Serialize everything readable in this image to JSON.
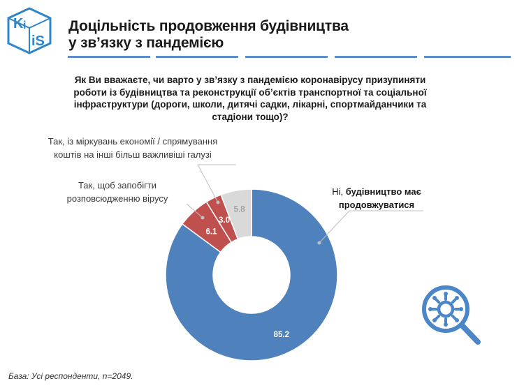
{
  "header": {
    "logo_text": "KiIS",
    "title_line1": "Доцільність продовження будівництва",
    "title_line2": "у зв’язку з пандемією"
  },
  "question": {
    "line1": "Як Ви вважаєте, чи варто у зв’язку з пандемією коронавірусу призупиняти",
    "line2": "роботи із будівництва та реконструкції об’єктів транспортної та соціальної",
    "line3": "інфраструктури (дороги, школи, дитячі садки, лікарні, спортмайданчики та",
    "line4": "стадіони тощо)?"
  },
  "labels": {
    "economy_line1": "Так, із міркувань економії / спрямування",
    "economy_line2": "коштів на інші більш важливіші галузі",
    "virus_line1": "Так, щоб запобігти",
    "virus_line2": "розповсюдженню вірусу",
    "continue_line1_prefix": "Ні, ",
    "continue_line1_bold": "будівництво має",
    "continue_line2_bold": "продовжуватися"
  },
  "footnote": "База: Усі респонденти, n=2049.",
  "colors": {
    "accent_blue": "#4a7ebb",
    "logo_blue": "#2e86c8",
    "red": "#c0504d",
    "grey": "#d9d9d9",
    "rule": "#5b8ec9"
  },
  "icons": [
    "logo-icon",
    "virus-search-icon"
  ],
  "chart_data": {
    "type": "pie",
    "donut": true,
    "title": "",
    "slices": [
      {
        "label": "Ні, будівництво має продовжуватися",
        "value": 85.2,
        "color": "#4f81bd",
        "value_label": "85.2"
      },
      {
        "label": "Так, щоб запобігти розповсюдженню вірусу",
        "value": 6.1,
        "color": "#c0504d",
        "value_label": "6.1"
      },
      {
        "label": "Так, із міркувань економії / спрямування коштів на інші більш важливіші галузі",
        "value": 3.0,
        "color": "#c0504d",
        "value_label": "3.0"
      },
      {
        "label": "",
        "value": 5.8,
        "color": "#d9d9d9",
        "value_label": "5.8"
      }
    ],
    "legend": "none"
  }
}
